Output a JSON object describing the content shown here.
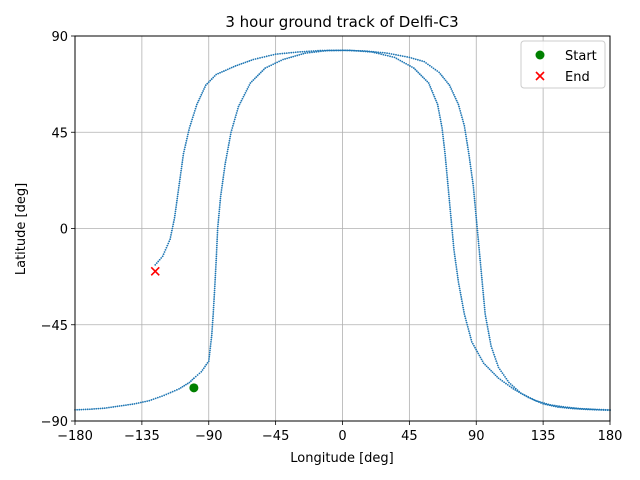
{
  "chart_data": {
    "type": "scatter",
    "title": "3 hour ground track of Delfi-C3",
    "xlabel": "Longitude [deg]",
    "ylabel": "Latitude [deg]",
    "xlim": [
      -180,
      180
    ],
    "ylim": [
      -90,
      90
    ],
    "xticks": [
      -180,
      -135,
      -90,
      -45,
      0,
      45,
      90,
      135,
      180
    ],
    "yticks": [
      -90,
      -45,
      0,
      45,
      90
    ],
    "xtick_labels": [
      "−180",
      "−135",
      "−90",
      "−45",
      "0",
      "45",
      "90",
      "135",
      "180"
    ],
    "ytick_labels": [
      "−90",
      "−45",
      "0",
      "45",
      "90"
    ],
    "grid": true,
    "legend_position": "top-right",
    "track_color": "#1f77b4",
    "series": [
      {
        "kind": "track",
        "points": [
          [
            -100,
            -70
          ],
          [
            -103,
            -72
          ],
          [
            -110,
            -75
          ],
          [
            -120,
            -78
          ],
          [
            -130,
            -80.5
          ],
          [
            -140,
            -82
          ],
          [
            -150,
            -83
          ],
          [
            -160,
            -84
          ],
          [
            -170,
            -84.5
          ],
          [
            -180,
            -84.8
          ]
        ]
      },
      {
        "kind": "track",
        "points": [
          [
            180,
            -84.8
          ],
          [
            170,
            -84.6
          ],
          [
            160,
            -84.2
          ],
          [
            150,
            -83.5
          ],
          [
            140,
            -82.5
          ],
          [
            130,
            -80.5
          ],
          [
            120,
            -77
          ],
          [
            112,
            -72
          ],
          [
            105,
            -65
          ],
          [
            100,
            -55
          ],
          [
            96,
            -40
          ],
          [
            94,
            -25
          ],
          [
            92,
            -10
          ],
          [
            90,
            5
          ],
          [
            88,
            20
          ],
          [
            85,
            35
          ],
          [
            82,
            48
          ],
          [
            78,
            58
          ],
          [
            72,
            67
          ],
          [
            65,
            73
          ],
          [
            55,
            78
          ],
          [
            45,
            80
          ],
          [
            30,
            82
          ],
          [
            15,
            83
          ],
          [
            0,
            83.3
          ],
          [
            -15,
            83.2
          ],
          [
            -30,
            82.5
          ],
          [
            -45,
            81.5
          ],
          [
            -60,
            79
          ],
          [
            -72,
            76
          ],
          [
            -85,
            72
          ],
          [
            -92,
            67
          ],
          [
            -98,
            58
          ],
          [
            -103,
            47
          ],
          [
            -107,
            35
          ],
          [
            -110,
            20
          ],
          [
            -113,
            5
          ],
          [
            -116,
            -5
          ],
          [
            -121,
            -13
          ],
          [
            -126,
            -17
          ]
        ]
      },
      {
        "kind": "track",
        "points": [
          [
            -100,
            -70
          ],
          [
            -95,
            -67
          ],
          [
            -90,
            -62
          ],
          [
            -88,
            -50
          ],
          [
            -87,
            -40
          ],
          [
            -86,
            -28
          ],
          [
            -85,
            -15
          ],
          [
            -84,
            0
          ],
          [
            -82,
            15
          ],
          [
            -79,
            30
          ],
          [
            -75,
            45
          ],
          [
            -70,
            57
          ],
          [
            -62,
            68
          ],
          [
            -52,
            75
          ],
          [
            -40,
            79
          ],
          [
            -25,
            82
          ],
          [
            -10,
            83.2
          ],
          [
            5,
            83.3
          ],
          [
            20,
            82.5
          ],
          [
            35,
            80
          ],
          [
            48,
            75
          ],
          [
            58,
            68
          ],
          [
            64,
            58
          ],
          [
            67,
            47
          ],
          [
            69,
            35
          ],
          [
            71,
            20
          ],
          [
            73,
            5
          ],
          [
            75,
            -10
          ],
          [
            78,
            -25
          ],
          [
            82,
            -40
          ],
          [
            87,
            -53
          ],
          [
            95,
            -63
          ],
          [
            105,
            -70
          ],
          [
            115,
            -75
          ],
          [
            125,
            -79
          ],
          [
            135,
            -82
          ],
          [
            145,
            -83.5
          ],
          [
            155,
            -84.2
          ],
          [
            165,
            -84.6
          ],
          [
            180,
            -85
          ]
        ]
      }
    ],
    "markers": [
      {
        "name": "Start",
        "lon": -100,
        "lat": -74.5,
        "symbol": "circle",
        "color": "#008000"
      },
      {
        "name": "End",
        "lon": -126,
        "lat": -20,
        "symbol": "x",
        "color": "#ff0000"
      }
    ]
  }
}
